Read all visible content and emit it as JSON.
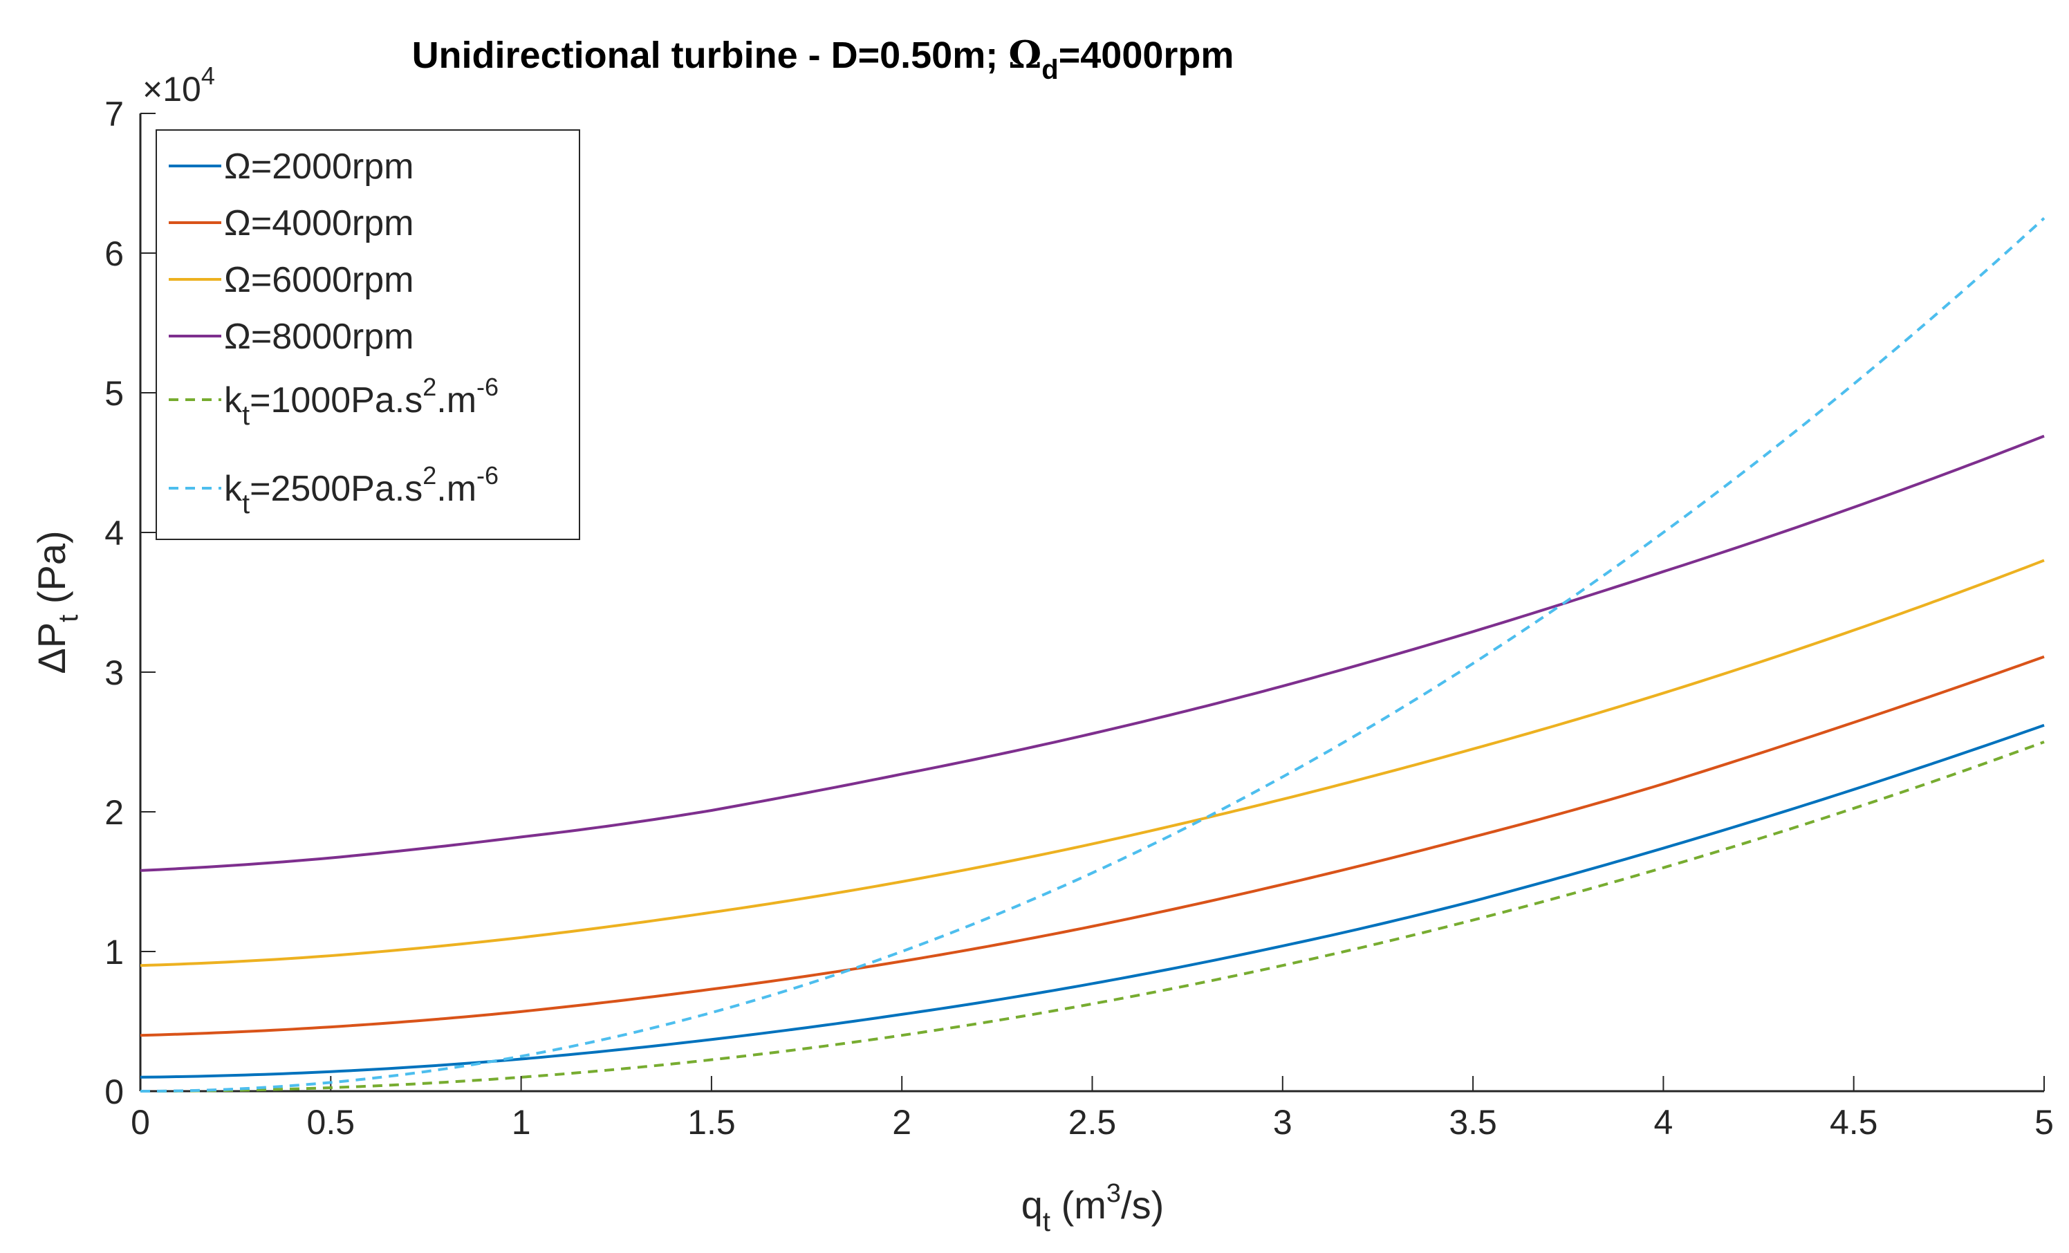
{
  "chart_data": {
    "type": "line",
    "title": {
      "main": "Unidirectional turbine - D=0.50m; ",
      "omega_symbol": "Ω",
      "omega_sub": "d",
      "omega_rest": "=4000rpm"
    },
    "xlabel": {
      "main": "q",
      "sub": "t",
      "mid": " (m",
      "sup": "3",
      "rest": "/s)"
    },
    "ylabel": {
      "main": "ΔP",
      "sub": "t",
      "rest": " (Pa)"
    },
    "xlim": [
      0,
      5
    ],
    "ylim": [
      0,
      70000
    ],
    "x_ticks": [
      0,
      0.5,
      1,
      1.5,
      2,
      2.5,
      3,
      3.5,
      4,
      4.5,
      5
    ],
    "x_tick_labels": [
      "0",
      "0.5",
      "1",
      "1.5",
      "2",
      "2.5",
      "3",
      "3.5",
      "4",
      "4.5",
      "5"
    ],
    "y_ticks": [
      0,
      10000,
      20000,
      30000,
      40000,
      50000,
      60000,
      70000
    ],
    "y_tick_labels": [
      "0",
      "1",
      "2",
      "3",
      "4",
      "5",
      "6",
      "7"
    ],
    "y_exponent": {
      "base": "×10",
      "power": "4"
    },
    "grid": false,
    "legend_position": "top-left",
    "series": [
      {
        "name": "Ω=2000rpm",
        "legend": {
          "main": "Ω=2000rpm"
        },
        "color": "#0072BD",
        "dash": "solid",
        "x": [
          0,
          0.5,
          1,
          1.5,
          2,
          2.5,
          3,
          3.5,
          4,
          4.5,
          5
        ],
        "values": [
          1000,
          1400,
          2300,
          3700,
          5500,
          7700,
          10400,
          13600,
          17400,
          21600,
          26200
        ]
      },
      {
        "name": "Ω=4000rpm",
        "legend": {
          "main": "Ω=4000rpm"
        },
        "color": "#D95319",
        "dash": "solid",
        "x": [
          0,
          0.5,
          1,
          1.5,
          2,
          2.5,
          3,
          3.5,
          4,
          4.5,
          5
        ],
        "values": [
          4000,
          4600,
          5700,
          7300,
          9300,
          11800,
          14800,
          18200,
          22000,
          26400,
          31100
        ]
      },
      {
        "name": "Ω=6000rpm",
        "legend": {
          "main": "Ω=6000rpm"
        },
        "color": "#EDB120",
        "dash": "solid",
        "x": [
          0,
          0.5,
          1,
          1.5,
          2,
          2.5,
          3,
          3.5,
          4,
          4.5,
          5
        ],
        "values": [
          9000,
          9700,
          11000,
          12800,
          15000,
          17700,
          20900,
          24500,
          28500,
          33000,
          38000
        ]
      },
      {
        "name": "Ω=8000rpm",
        "legend": {
          "main": "Ω=8000rpm"
        },
        "color": "#7E2F8E",
        "dash": "solid",
        "x": [
          0,
          0.5,
          1,
          1.5,
          2,
          2.5,
          3,
          3.5,
          4,
          4.5,
          5
        ],
        "values": [
          15800,
          16700,
          18200,
          20100,
          22700,
          25600,
          29000,
          32900,
          37200,
          41800,
          46900
        ]
      },
      {
        "name": "k_t=1000Pa.s^2.m^-6",
        "legend": {
          "main": "k",
          "sub": "t",
          "mid": "=1000Pa.s",
          "sup1": "2",
          "mid2": ".m",
          "sup2": "-6"
        },
        "color": "#77AC30",
        "dash": "dashed",
        "x": [
          0,
          0.5,
          1,
          1.5,
          2,
          2.5,
          3,
          3.5,
          4,
          4.5,
          5
        ],
        "values": [
          0,
          250,
          1000,
          2250,
          4000,
          6250,
          9000,
          12250,
          16000,
          20250,
          25000
        ]
      },
      {
        "name": "k_t=2500Pa.s^2.m^-6",
        "legend": {
          "main": "k",
          "sub": "t",
          "mid": "=2500Pa.s",
          "sup1": "2",
          "mid2": ".m",
          "sup2": "-6"
        },
        "color": "#4DBEEE",
        "dash": "dashed",
        "x": [
          0,
          0.5,
          1,
          1.5,
          2,
          2.5,
          3,
          3.5,
          4,
          4.5,
          5
        ],
        "values": [
          0,
          625,
          2500,
          5625,
          10000,
          15625,
          22500,
          30625,
          40000,
          50625,
          62500
        ]
      }
    ]
  }
}
